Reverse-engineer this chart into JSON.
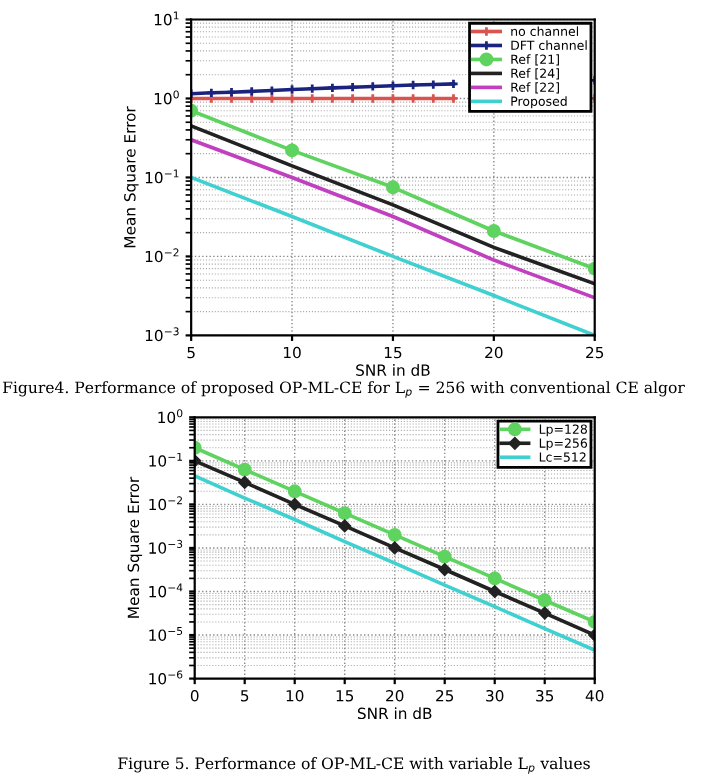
{
  "chart_data": [
    {
      "type": "line",
      "xlabel": "SNR in dB",
      "ylabel": "Mean Square Error",
      "log": "y",
      "grid": true,
      "legend": "top right",
      "annotations": [
        "Figure4. Performance of proposed OP-ML-CE for L$_{p}$ = 256 with conventional CE algor"
      ],
      "xlim": [
        5,
        25
      ],
      "xticks": [
        5,
        10,
        15,
        20,
        25
      ],
      "ylim": [
        0.001,
        10
      ],
      "yticks": [
        {
          "value": 0.001,
          "label": "10$^{−3}$"
        },
        {
          "value": 0.01,
          "label": "10$^{−2}$"
        },
        {
          "value": 0.1,
          "label": "10$^{−1}$"
        },
        {
          "value": 1,
          "label": "10$^{0}$"
        },
        {
          "value": 10,
          "label": "10$^{1}$"
        }
      ],
      "series": [
        {
          "name": "no channel",
          "color": "#d9534f",
          "marker": "cross",
          "x": [
            5,
            6,
            7,
            8,
            9,
            10,
            11,
            12,
            13,
            14,
            15,
            16,
            17,
            18,
            19,
            20,
            21,
            22,
            23,
            24,
            25
          ],
          "values": [
            1,
            1,
            1,
            1,
            1,
            1,
            1,
            1,
            1,
            1,
            1,
            1,
            1,
            1,
            null,
            null,
            null,
            null,
            null,
            null,
            1
          ]
        },
        {
          "name": "DFT channel",
          "color": "#1a237e",
          "marker": "cross",
          "x": [
            5,
            6,
            7,
            8,
            9,
            10,
            11,
            12,
            13,
            14,
            15,
            16,
            17,
            18,
            19,
            20,
            21,
            22,
            23,
            24,
            25
          ],
          "values": [
            1.15,
            1.18,
            1.2,
            1.23,
            1.26,
            1.3,
            1.33,
            1.36,
            1.39,
            1.42,
            1.45,
            1.48,
            1.5,
            1.53,
            null,
            null,
            null,
            null,
            null,
            null,
            1.7
          ]
        },
        {
          "name": "Ref [21]",
          "color": "#5fd35f",
          "marker": "circle",
          "x": [
            5,
            10,
            15,
            20,
            25
          ],
          "values": [
            0.7,
            0.22,
            0.075,
            0.021,
            0.007
          ]
        },
        {
          "name": "Ref [24]",
          "color": "#222222",
          "marker": "none",
          "x": [
            5,
            10,
            15,
            20,
            25
          ],
          "values": [
            0.45,
            0.14,
            0.045,
            0.013,
            0.0045
          ]
        },
        {
          "name": "Ref [22]",
          "color": "#c040c0",
          "marker": "none",
          "x": [
            5,
            10,
            15,
            20,
            25
          ],
          "values": [
            0.3,
            0.1,
            0.032,
            0.009,
            0.003
          ]
        },
        {
          "name": "Proposed",
          "color": "#40d0d0",
          "marker": "none",
          "x": [
            5,
            10,
            15,
            20,
            25
          ],
          "values": [
            0.1,
            0.032,
            0.01,
            0.0032,
            0.001
          ]
        }
      ]
    },
    {
      "type": "line",
      "xlabel": "SNR in dB",
      "ylabel": "Mean Square Error",
      "log": "y",
      "grid": true,
      "legend": "top right",
      "annotations": [
        "Figure 5. Performance of OP-ML-CE with variable L$_{p}$ values"
      ],
      "xlim": [
        0,
        40
      ],
      "xticks": [
        0,
        5,
        10,
        15,
        20,
        25,
        30,
        35,
        40
      ],
      "ylim": [
        1e-06,
        1
      ],
      "yticks": [
        {
          "value": 1e-06,
          "label": "10$^{−6}$"
        },
        {
          "value": 1e-05,
          "label": "10$^{−5}$"
        },
        {
          "value": 0.0001,
          "label": "10$^{−4}$"
        },
        {
          "value": 0.001,
          "label": "10$^{−3}$"
        },
        {
          "value": 0.01,
          "label": "10$^{−2}$"
        },
        {
          "value": 0.1,
          "label": "10$^{−1}$"
        },
        {
          "value": 1,
          "label": "10$^{0}$"
        }
      ],
      "x": [
        0,
        5,
        10,
        15,
        20,
        25,
        30,
        35,
        40
      ],
      "series": [
        {
          "name": "Lp=128",
          "color": "#5fd35f",
          "marker": "circle",
          "values": [
            0.2,
            0.063,
            0.02,
            0.0063,
            0.002,
            0.00063,
            0.0002,
            6.3e-05,
            2e-05
          ]
        },
        {
          "name": "Lp=256",
          "color": "#222222",
          "marker": "diamond",
          "values": [
            0.1,
            0.032,
            0.01,
            0.0032,
            0.001,
            0.00032,
            0.0001,
            3.2e-05,
            1e-05
          ]
        },
        {
          "name": "Lc=512",
          "color": "#40d0d0",
          "marker": "none",
          "values": [
            0.045,
            0.014,
            0.0045,
            0.0014,
            0.00045,
            0.00014,
            4.5e-05,
            1.4e-05,
            4.5e-06
          ]
        }
      ]
    }
  ]
}
